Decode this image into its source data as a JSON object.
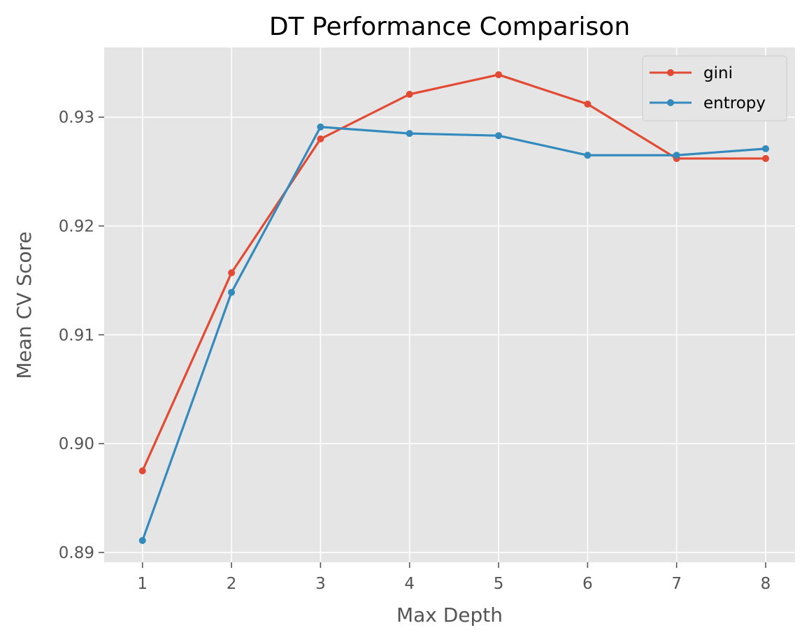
{
  "chart_data": {
    "type": "line",
    "title": "DT Performance Comparison",
    "xlabel": "Max Depth",
    "ylabel": "Mean CV Score",
    "x": [
      1,
      2,
      3,
      4,
      5,
      6,
      7,
      8
    ],
    "xlim": [
      0.57,
      8.33
    ],
    "ylim": [
      0.8891,
      0.9364
    ],
    "xticks": [
      "1",
      "2",
      "3",
      "4",
      "5",
      "6",
      "7",
      "8"
    ],
    "yticks": [
      0.89,
      0.9,
      0.91,
      0.92,
      0.93
    ],
    "ytick_labels": [
      "0.89",
      "0.90",
      "0.91",
      "0.92",
      "0.93"
    ],
    "grid": true,
    "legend_position": "top-right",
    "background": "#e5e5e5",
    "series": [
      {
        "name": "gini",
        "color": "#e24a33",
        "marker": "circle",
        "values": [
          0.8975,
          0.9157,
          0.928,
          0.9321,
          0.9339,
          0.9312,
          0.9262,
          0.9262
        ]
      },
      {
        "name": "entropy",
        "color": "#348abd",
        "marker": "circle",
        "values": [
          0.8911,
          0.9139,
          0.9291,
          0.9285,
          0.9283,
          0.9265,
          0.9265,
          0.9271
        ]
      }
    ]
  }
}
